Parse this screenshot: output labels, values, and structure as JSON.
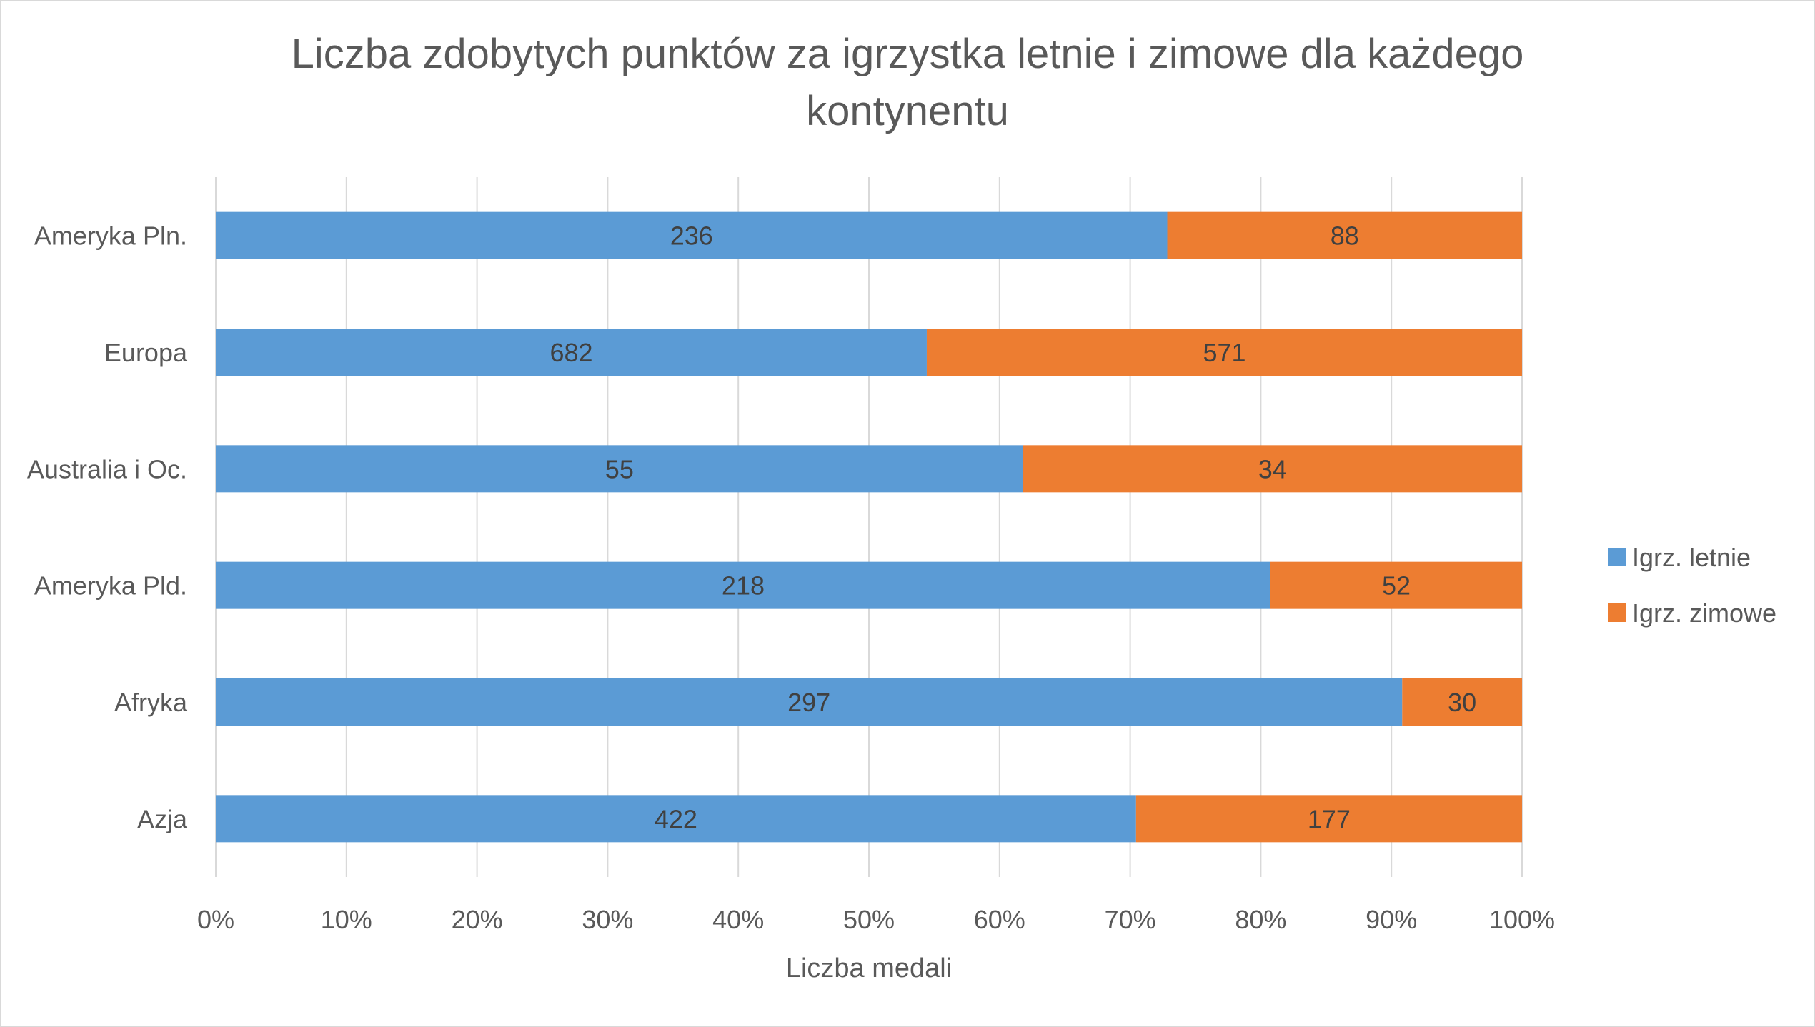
{
  "chart_data": {
    "type": "bar",
    "orientation": "horizontal",
    "stacking": "percent",
    "title_lines": [
      "Liczba zdobytych punktów za igrzystka letnie i zimowe dla każdego",
      "kontynentu"
    ],
    "xlabel": "Liczba medali",
    "ylabel": "",
    "xlim": [
      0,
      100
    ],
    "x_ticks": [
      "0%",
      "10%",
      "20%",
      "30%",
      "40%",
      "50%",
      "60%",
      "70%",
      "80%",
      "90%",
      "100%"
    ],
    "categories": [
      "Ameryka Pln.",
      "Europa",
      "Australia i Oc.",
      "Ameryka Pld.",
      "Afryka",
      "Azja"
    ],
    "series": [
      {
        "name": "Igrz. letnie",
        "values": [
          236,
          682,
          55,
          218,
          297,
          422
        ],
        "color": "#5b9bd5"
      },
      {
        "name": "Igrz. zimowe",
        "values": [
          88,
          571,
          34,
          52,
          30,
          177
        ],
        "color": "#ed7d31"
      }
    ],
    "grid": true,
    "gridline_color": "#d9d9d9",
    "legend_position": "right",
    "data_labels": true
  }
}
